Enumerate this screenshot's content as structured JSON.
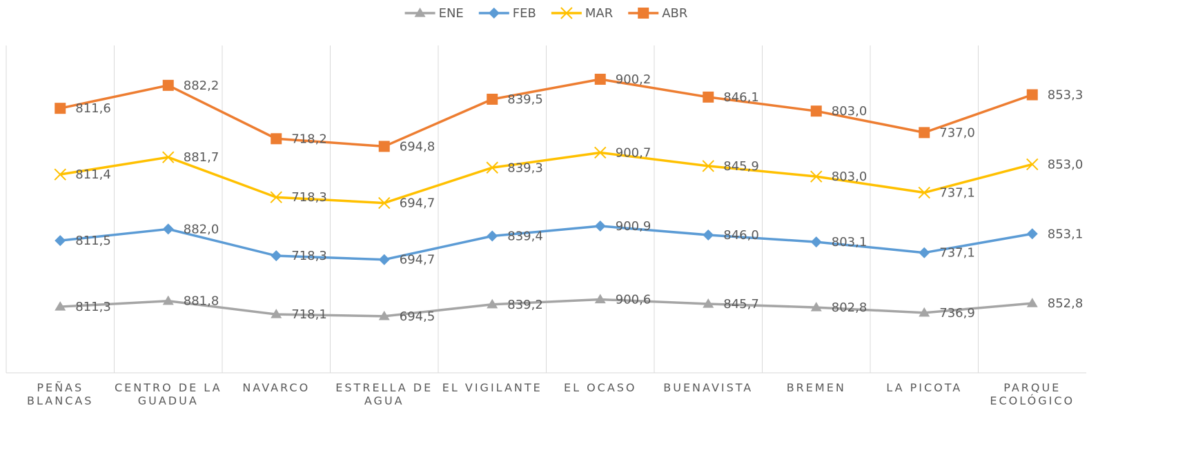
{
  "chart_data": {
    "type": "line",
    "stacked": true,
    "categories": [
      "PEÑAS BLANCAS",
      "CENTRO DE LA GUADUA",
      "NAVARCO",
      "ESTRELLA DE AGUA",
      "EL VIGILANTE",
      "EL OCASO",
      "BUENAVISTA",
      "BREMEN",
      "LA PICOTA",
      "PARQUE ECOLÓGICO"
    ],
    "ylim": [
      0,
      4000
    ],
    "grid": true,
    "legend": "top",
    "series": [
      {
        "name": "ENE",
        "color": "#a5a5a5",
        "marker": "triangle",
        "values": [
          811.3,
          881.8,
          718.1,
          694.5,
          839.2,
          900.6,
          845.7,
          802.8,
          736.9,
          852.8
        ],
        "value_labels": [
          "811,3",
          "881,8",
          "718,1",
          "694,5",
          "839,2",
          "900,6",
          "845,7",
          "802,8",
          "736,9",
          "852,8"
        ]
      },
      {
        "name": "FEB",
        "color": "#5b9bd5",
        "marker": "diamond",
        "values": [
          811.5,
          882.0,
          718.3,
          694.7,
          839.4,
          900.9,
          846.0,
          803.1,
          737.1,
          853.1
        ],
        "value_labels": [
          "811,5",
          "882,0",
          "718,3",
          "694,7",
          "839,4",
          "900,9",
          "846,0",
          "803,1",
          "737,1",
          "853,1"
        ]
      },
      {
        "name": "MAR",
        "color": "#ffc000",
        "marker": "x",
        "values": [
          811.4,
          881.7,
          718.3,
          694.7,
          839.3,
          900.7,
          845.9,
          803.0,
          737.1,
          853.0
        ],
        "value_labels": [
          "811,4",
          "881,7",
          "718,3",
          "694,7",
          "839,3",
          "900,7",
          "845,9",
          "803,0",
          "737,1",
          "853,0"
        ]
      },
      {
        "name": "ABR",
        "color": "#ed7d31",
        "marker": "square",
        "values": [
          811.6,
          882.2,
          718.2,
          694.8,
          839.5,
          900.2,
          846.1,
          803.0,
          737.0,
          853.3
        ],
        "value_labels": [
          "811,6",
          "882,2",
          "718,2",
          "694,8",
          "839,5",
          "900,2",
          "846,1",
          "803,0",
          "737,0",
          "853,3"
        ]
      }
    ]
  }
}
